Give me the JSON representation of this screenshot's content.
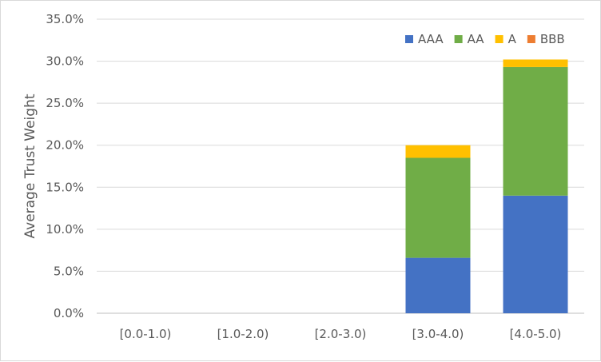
{
  "chart_data": {
    "type": "bar",
    "stacked": true,
    "title": "",
    "xlabel": "",
    "ylabel": "Average Trust Weight",
    "categories": [
      "[0.0-1.0)",
      "[1.0-2.0)",
      "[2.0-3.0)",
      "[3.0-4.0)",
      "[4.0-5.0)"
    ],
    "y_ticks": [
      "0.0%",
      "5.0%",
      "10.0%",
      "15.0%",
      "20.0%",
      "25.0%",
      "30.0%",
      "35.0%"
    ],
    "ylim": [
      0,
      35
    ],
    "grid": true,
    "legend_position": "top-right",
    "series": [
      {
        "name": "AAA",
        "color": "#4472c4",
        "values": [
          0,
          0,
          0,
          6.6,
          14.0
        ]
      },
      {
        "name": "AA",
        "color": "#70ad47",
        "values": [
          0,
          0,
          0,
          11.9,
          15.3
        ]
      },
      {
        "name": "A",
        "color": "#ffc000",
        "values": [
          0,
          0,
          0,
          1.5,
          0.9
        ]
      },
      {
        "name": "BBB",
        "color": "#ed7d31",
        "values": [
          0,
          0,
          0,
          0,
          0
        ]
      }
    ]
  }
}
